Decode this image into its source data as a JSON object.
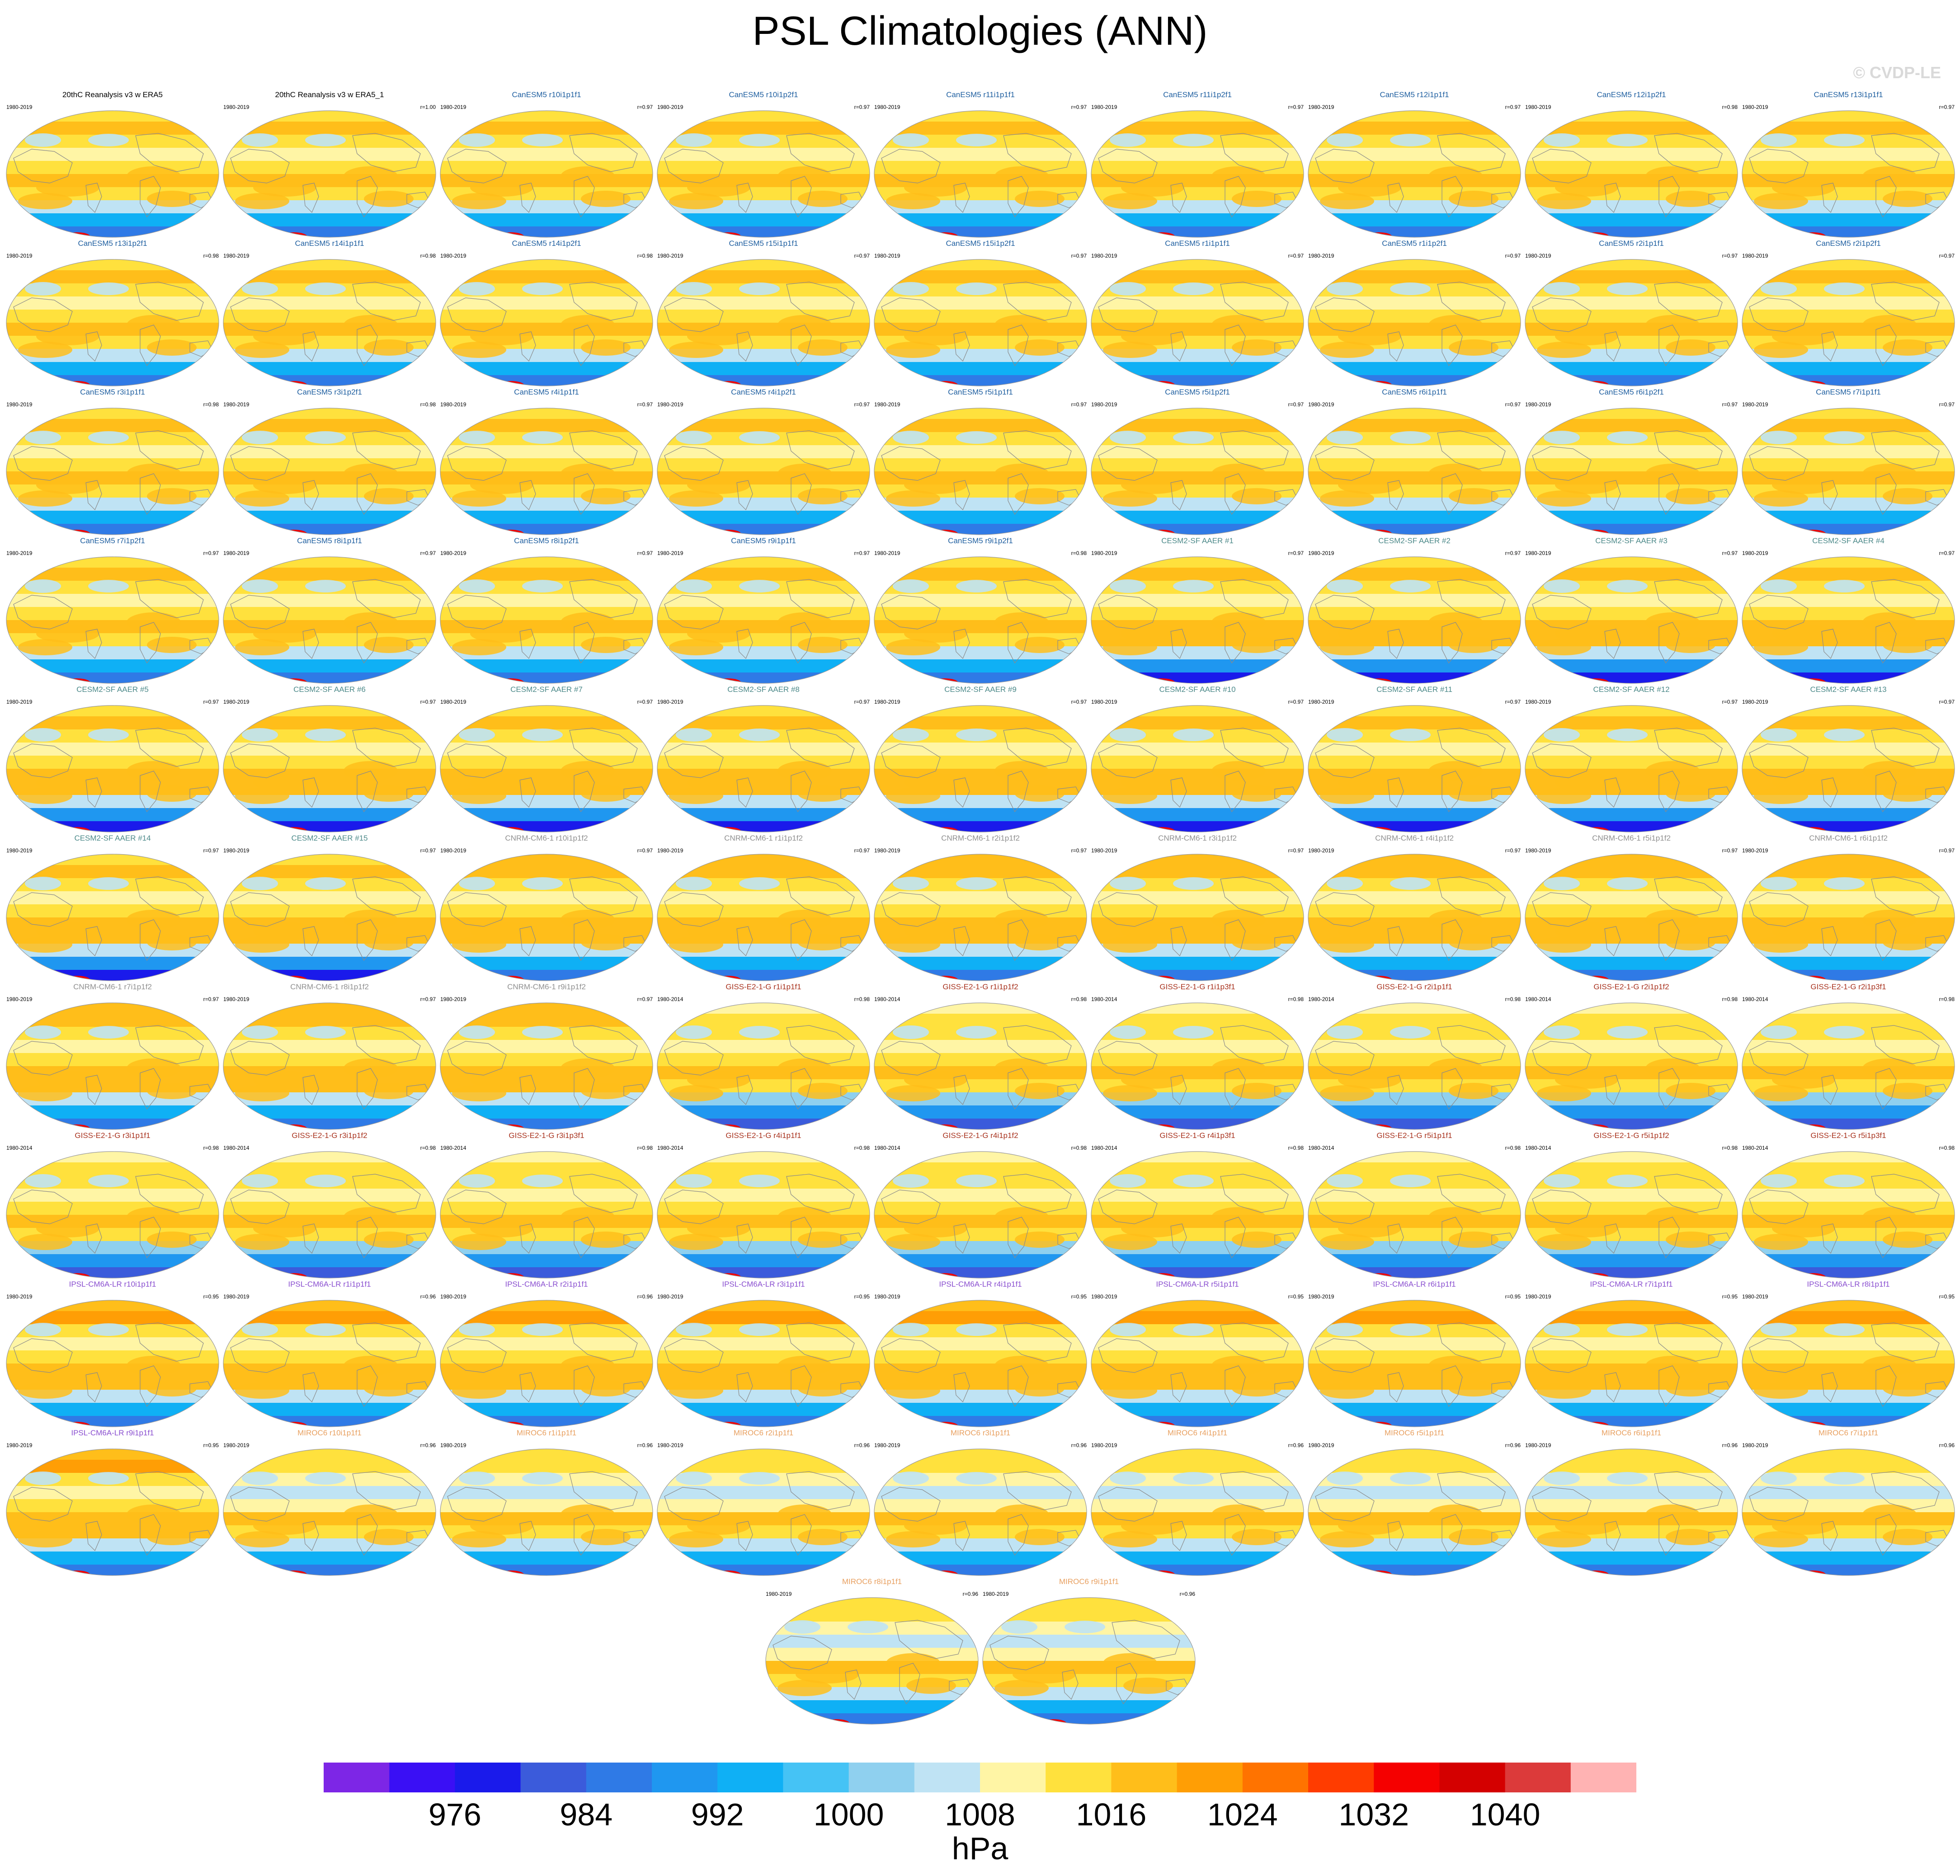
{
  "title": "PSL Climatologies (ANN)",
  "watermark": "© CVDP-LE",
  "map_data": {
    "type": "map-grid",
    "variable": "PSL",
    "projection": "robinson",
    "colorbar": {
      "colors": [
        "#7d26e6",
        "#3a0ff5",
        "#1a1aeb",
        "#3b5bdb",
        "#2f7ae6",
        "#1f97f0",
        "#0fb0f5",
        "#45c3f5",
        "#8fd0ef",
        "#bfe3f4",
        "#fff5a5",
        "#ffe13d",
        "#ffbe1a",
        "#ff9e05",
        "#ff7300",
        "#ff3c00",
        "#f50000",
        "#d40000",
        "#dc3a3a",
        "#ffb3b3"
      ],
      "tick_labels": [
        "976",
        "984",
        "992",
        "1000",
        "1008",
        "1016",
        "1024",
        "1032",
        "1040"
      ],
      "units": "hPa"
    },
    "panels": [
      {
        "title": "20thC Reanalysis v3 w ERA5",
        "years": "1980-2019",
        "corr": "",
        "color": "#000000",
        "style": "canesm"
      },
      {
        "title": "20thC Reanalysis v3 w ERA5_1",
        "years": "1980-2019",
        "corr": "r=1.00",
        "color": "#000000",
        "style": "canesm"
      },
      {
        "title": "CanESM5 r10i1p1f1",
        "years": "1980-2019",
        "corr": "r=0.97",
        "color": "#1f5fa0",
        "style": "canesm"
      },
      {
        "title": "CanESM5 r10i1p2f1",
        "years": "1980-2019",
        "corr": "r=0.97",
        "color": "#1f5fa0",
        "style": "canesm"
      },
      {
        "title": "CanESM5 r11i1p1f1",
        "years": "1980-2019",
        "corr": "r=0.97",
        "color": "#1f5fa0",
        "style": "canesm"
      },
      {
        "title": "CanESM5 r11i1p2f1",
        "years": "1980-2019",
        "corr": "r=0.97",
        "color": "#1f5fa0",
        "style": "canesm"
      },
      {
        "title": "CanESM5 r12i1p1f1",
        "years": "1980-2019",
        "corr": "r=0.97",
        "color": "#1f5fa0",
        "style": "canesm"
      },
      {
        "title": "CanESM5 r12i1p2f1",
        "years": "1980-2019",
        "corr": "r=0.98",
        "color": "#1f5fa0",
        "style": "canesm"
      },
      {
        "title": "CanESM5 r13i1p1f1",
        "years": "1980-2019",
        "corr": "r=0.97",
        "color": "#1f5fa0",
        "style": "canesm"
      },
      {
        "title": "CanESM5 r13i1p2f1",
        "years": "1980-2019",
        "corr": "r=0.98",
        "color": "#1f5fa0",
        "style": "canesm"
      },
      {
        "title": "CanESM5 r14i1p1f1",
        "years": "1980-2019",
        "corr": "r=0.98",
        "color": "#1f5fa0",
        "style": "canesm"
      },
      {
        "title": "CanESM5 r14i1p2f1",
        "years": "1980-2019",
        "corr": "r=0.98",
        "color": "#1f5fa0",
        "style": "canesm"
      },
      {
        "title": "CanESM5 r15i1p1f1",
        "years": "1980-2019",
        "corr": "r=0.97",
        "color": "#1f5fa0",
        "style": "canesm"
      },
      {
        "title": "CanESM5 r15i1p2f1",
        "years": "1980-2019",
        "corr": "r=0.97",
        "color": "#1f5fa0",
        "style": "canesm"
      },
      {
        "title": "CanESM5 r1i1p1f1",
        "years": "1980-2019",
        "corr": "r=0.97",
        "color": "#1f5fa0",
        "style": "canesm"
      },
      {
        "title": "CanESM5 r1i1p2f1",
        "years": "1980-2019",
        "corr": "r=0.97",
        "color": "#1f5fa0",
        "style": "canesm"
      },
      {
        "title": "CanESM5 r2i1p1f1",
        "years": "1980-2019",
        "corr": "r=0.97",
        "color": "#1f5fa0",
        "style": "canesm"
      },
      {
        "title": "CanESM5 r2i1p2f1",
        "years": "1980-2019",
        "corr": "r=0.97",
        "color": "#1f5fa0",
        "style": "canesm"
      },
      {
        "title": "CanESM5 r3i1p1f1",
        "years": "1980-2019",
        "corr": "r=0.98",
        "color": "#1f5fa0",
        "style": "canesm"
      },
      {
        "title": "CanESM5 r3i1p2f1",
        "years": "1980-2019",
        "corr": "r=0.98",
        "color": "#1f5fa0",
        "style": "canesm"
      },
      {
        "title": "CanESM5 r4i1p1f1",
        "years": "1980-2019",
        "corr": "r=0.97",
        "color": "#1f5fa0",
        "style": "canesm"
      },
      {
        "title": "CanESM5 r4i1p2f1",
        "years": "1980-2019",
        "corr": "r=0.97",
        "color": "#1f5fa0",
        "style": "canesm"
      },
      {
        "title": "CanESM5 r5i1p1f1",
        "years": "1980-2019",
        "corr": "r=0.97",
        "color": "#1f5fa0",
        "style": "canesm"
      },
      {
        "title": "CanESM5 r5i1p2f1",
        "years": "1980-2019",
        "corr": "r=0.97",
        "color": "#1f5fa0",
        "style": "canesm"
      },
      {
        "title": "CanESM5 r6i1p1f1",
        "years": "1980-2019",
        "corr": "r=0.97",
        "color": "#1f5fa0",
        "style": "canesm"
      },
      {
        "title": "CanESM5 r6i1p2f1",
        "years": "1980-2019",
        "corr": "r=0.97",
        "color": "#1f5fa0",
        "style": "canesm"
      },
      {
        "title": "CanESM5 r7i1p1f1",
        "years": "1980-2019",
        "corr": "r=0.97",
        "color": "#1f5fa0",
        "style": "canesm"
      },
      {
        "title": "CanESM5 r7i1p2f1",
        "years": "1980-2019",
        "corr": "r=0.97",
        "color": "#1f5fa0",
        "style": "canesm"
      },
      {
        "title": "CanESM5 r8i1p1f1",
        "years": "1980-2019",
        "corr": "r=0.97",
        "color": "#1f5fa0",
        "style": "canesm"
      },
      {
        "title": "CanESM5 r8i1p2f1",
        "years": "1980-2019",
        "corr": "r=0.97",
        "color": "#1f5fa0",
        "style": "canesm"
      },
      {
        "title": "CanESM5 r9i1p1f1",
        "years": "1980-2019",
        "corr": "r=0.97",
        "color": "#1f5fa0",
        "style": "canesm"
      },
      {
        "title": "CanESM5 r9i1p2f1",
        "years": "1980-2019",
        "corr": "r=0.98",
        "color": "#1f5fa0",
        "style": "canesm"
      },
      {
        "title": "CESM2-SF AAER #1",
        "years": "1980-2019",
        "corr": "r=0.97",
        "color": "#4d8a8a",
        "style": "cesm"
      },
      {
        "title": "CESM2-SF AAER #2",
        "years": "1980-2019",
        "corr": "r=0.97",
        "color": "#4d8a8a",
        "style": "cesm"
      },
      {
        "title": "CESM2-SF AAER #3",
        "years": "1980-2019",
        "corr": "r=0.97",
        "color": "#4d8a8a",
        "style": "cesm"
      },
      {
        "title": "CESM2-SF AAER #4",
        "years": "1980-2019",
        "corr": "r=0.97",
        "color": "#4d8a8a",
        "style": "cesm"
      },
      {
        "title": "CESM2-SF AAER #5",
        "years": "1980-2019",
        "corr": "r=0.97",
        "color": "#4d8a8a",
        "style": "cesm"
      },
      {
        "title": "CESM2-SF AAER #6",
        "years": "1980-2019",
        "corr": "r=0.97",
        "color": "#4d8a8a",
        "style": "cesm"
      },
      {
        "title": "CESM2-SF AAER #7",
        "years": "1980-2019",
        "corr": "r=0.97",
        "color": "#4d8a8a",
        "style": "cesm"
      },
      {
        "title": "CESM2-SF AAER #8",
        "years": "1980-2019",
        "corr": "r=0.97",
        "color": "#4d8a8a",
        "style": "cesm"
      },
      {
        "title": "CESM2-SF AAER #9",
        "years": "1980-2019",
        "corr": "r=0.97",
        "color": "#4d8a8a",
        "style": "cesm"
      },
      {
        "title": "CESM2-SF AAER #10",
        "years": "1980-2019",
        "corr": "r=0.97",
        "color": "#4d8a8a",
        "style": "cesm"
      },
      {
        "title": "CESM2-SF AAER #11",
        "years": "1980-2019",
        "corr": "r=0.97",
        "color": "#4d8a8a",
        "style": "cesm"
      },
      {
        "title": "CESM2-SF AAER #12",
        "years": "1980-2019",
        "corr": "r=0.97",
        "color": "#4d8a8a",
        "style": "cesm"
      },
      {
        "title": "CESM2-SF AAER #13",
        "years": "1980-2019",
        "corr": "r=0.97",
        "color": "#4d8a8a",
        "style": "cesm"
      },
      {
        "title": "CESM2-SF AAER #14",
        "years": "1980-2019",
        "corr": "r=0.97",
        "color": "#4d8a8a",
        "style": "cesm"
      },
      {
        "title": "CESM2-SF AAER #15",
        "years": "1980-2019",
        "corr": "r=0.97",
        "color": "#4d8a8a",
        "style": "cesm"
      },
      {
        "title": "CNRM-CM6-1 r10i1p1f2",
        "years": "1980-2019",
        "corr": "r=0.97",
        "color": "#909090",
        "style": "cnrm"
      },
      {
        "title": "CNRM-CM6-1 r1i1p1f2",
        "years": "1980-2019",
        "corr": "r=0.97",
        "color": "#909090",
        "style": "cnrm"
      },
      {
        "title": "CNRM-CM6-1 r2i1p1f2",
        "years": "1980-2019",
        "corr": "r=0.97",
        "color": "#909090",
        "style": "cnrm"
      },
      {
        "title": "CNRM-CM6-1 r3i1p1f2",
        "years": "1980-2019",
        "corr": "r=0.97",
        "color": "#909090",
        "style": "cnrm"
      },
      {
        "title": "CNRM-CM6-1 r4i1p1f2",
        "years": "1980-2019",
        "corr": "r=0.97",
        "color": "#909090",
        "style": "cnrm"
      },
      {
        "title": "CNRM-CM6-1 r5i1p1f2",
        "years": "1980-2019",
        "corr": "r=0.97",
        "color": "#909090",
        "style": "cnrm"
      },
      {
        "title": "CNRM-CM6-1 r6i1p1f2",
        "years": "1980-2019",
        "corr": "r=0.97",
        "color": "#909090",
        "style": "cnrm"
      },
      {
        "title": "CNRM-CM6-1 r7i1p1f2",
        "years": "1980-2019",
        "corr": "r=0.97",
        "color": "#909090",
        "style": "cnrm"
      },
      {
        "title": "CNRM-CM6-1 r8i1p1f2",
        "years": "1980-2019",
        "corr": "r=0.97",
        "color": "#909090",
        "style": "cnrm"
      },
      {
        "title": "CNRM-CM6-1 r9i1p1f2",
        "years": "1980-2019",
        "corr": "r=0.97",
        "color": "#909090",
        "style": "cnrm"
      },
      {
        "title": "GISS-E2-1-G r1i1p1f1",
        "years": "1980-2014",
        "corr": "r=0.98",
        "color": "#a8321e",
        "style": "giss"
      },
      {
        "title": "GISS-E2-1-G r1i1p1f2",
        "years": "1980-2014",
        "corr": "r=0.98",
        "color": "#a8321e",
        "style": "giss"
      },
      {
        "title": "GISS-E2-1-G r1i1p3f1",
        "years": "1980-2014",
        "corr": "r=0.98",
        "color": "#a8321e",
        "style": "giss"
      },
      {
        "title": "GISS-E2-1-G r2i1p1f1",
        "years": "1980-2014",
        "corr": "r=0.98",
        "color": "#a8321e",
        "style": "giss"
      },
      {
        "title": "GISS-E2-1-G r2i1p1f2",
        "years": "1980-2014",
        "corr": "r=0.98",
        "color": "#a8321e",
        "style": "giss"
      },
      {
        "title": "GISS-E2-1-G r2i1p3f1",
        "years": "1980-2014",
        "corr": "r=0.98",
        "color": "#a8321e",
        "style": "giss"
      },
      {
        "title": "GISS-E2-1-G r3i1p1f1",
        "years": "1980-2014",
        "corr": "r=0.98",
        "color": "#a8321e",
        "style": "giss"
      },
      {
        "title": "GISS-E2-1-G r3i1p1f2",
        "years": "1980-2014",
        "corr": "r=0.98",
        "color": "#a8321e",
        "style": "giss"
      },
      {
        "title": "GISS-E2-1-G r3i1p3f1",
        "years": "1980-2014",
        "corr": "r=0.98",
        "color": "#a8321e",
        "style": "giss"
      },
      {
        "title": "GISS-E2-1-G r4i1p1f1",
        "years": "1980-2014",
        "corr": "r=0.98",
        "color": "#a8321e",
        "style": "giss"
      },
      {
        "title": "GISS-E2-1-G r4i1p1f2",
        "years": "1980-2014",
        "corr": "r=0.98",
        "color": "#a8321e",
        "style": "giss"
      },
      {
        "title": "GISS-E2-1-G r4i1p3f1",
        "years": "1980-2014",
        "corr": "r=0.98",
        "color": "#a8321e",
        "style": "giss"
      },
      {
        "title": "GISS-E2-1-G r5i1p1f1",
        "years": "1980-2014",
        "corr": "r=0.98",
        "color": "#a8321e",
        "style": "giss"
      },
      {
        "title": "GISS-E2-1-G r5i1p1f2",
        "years": "1980-2014",
        "corr": "r=0.98",
        "color": "#a8321e",
        "style": "giss"
      },
      {
        "title": "GISS-E2-1-G r5i1p3f1",
        "years": "1980-2014",
        "corr": "r=0.98",
        "color": "#a8321e",
        "style": "giss"
      },
      {
        "title": "IPSL-CM6A-LR r10i1p1f1",
        "years": "1980-2019",
        "corr": "r=0.95",
        "color": "#8a4fd0",
        "style": "ipsl"
      },
      {
        "title": "IPSL-CM6A-LR r1i1p1f1",
        "years": "1980-2019",
        "corr": "r=0.96",
        "color": "#8a4fd0",
        "style": "ipsl"
      },
      {
        "title": "IPSL-CM6A-LR r2i1p1f1",
        "years": "1980-2019",
        "corr": "r=0.96",
        "color": "#8a4fd0",
        "style": "ipsl"
      },
      {
        "title": "IPSL-CM6A-LR r3i1p1f1",
        "years": "1980-2019",
        "corr": "r=0.95",
        "color": "#8a4fd0",
        "style": "ipsl"
      },
      {
        "title": "IPSL-CM6A-LR r4i1p1f1",
        "years": "1980-2019",
        "corr": "r=0.95",
        "color": "#8a4fd0",
        "style": "ipsl"
      },
      {
        "title": "IPSL-CM6A-LR r5i1p1f1",
        "years": "1980-2019",
        "corr": "r=0.95",
        "color": "#8a4fd0",
        "style": "ipsl"
      },
      {
        "title": "IPSL-CM6A-LR r6i1p1f1",
        "years": "1980-2019",
        "corr": "r=0.95",
        "color": "#8a4fd0",
        "style": "ipsl"
      },
      {
        "title": "IPSL-CM6A-LR r7i1p1f1",
        "years": "1980-2019",
        "corr": "r=0.95",
        "color": "#8a4fd0",
        "style": "ipsl"
      },
      {
        "title": "IPSL-CM6A-LR r8i1p1f1",
        "years": "1980-2019",
        "corr": "r=0.95",
        "color": "#8a4fd0",
        "style": "ipsl"
      },
      {
        "title": "IPSL-CM6A-LR r9i1p1f1",
        "years": "1980-2019",
        "corr": "r=0.95",
        "color": "#8a4fd0",
        "style": "ipsl"
      },
      {
        "title": "MIROC6 r10i1p1f1",
        "years": "1980-2019",
        "corr": "r=0.96",
        "color": "#e8a060",
        "style": "miroc"
      },
      {
        "title": "MIROC6 r1i1p1f1",
        "years": "1980-2019",
        "corr": "r=0.96",
        "color": "#e8a060",
        "style": "miroc"
      },
      {
        "title": "MIROC6 r2i1p1f1",
        "years": "1980-2019",
        "corr": "r=0.96",
        "color": "#e8a060",
        "style": "miroc"
      },
      {
        "title": "MIROC6 r3i1p1f1",
        "years": "1980-2019",
        "corr": "r=0.96",
        "color": "#e8a060",
        "style": "miroc"
      },
      {
        "title": "MIROC6 r4i1p1f1",
        "years": "1980-2019",
        "corr": "r=0.96",
        "color": "#e8a060",
        "style": "miroc"
      },
      {
        "title": "MIROC6 r5i1p1f1",
        "years": "1980-2019",
        "corr": "r=0.96",
        "color": "#e8a060",
        "style": "miroc"
      },
      {
        "title": "MIROC6 r6i1p1f1",
        "years": "1980-2019",
        "corr": "r=0.96",
        "color": "#e8a060",
        "style": "miroc"
      },
      {
        "title": "MIROC6 r7i1p1f1",
        "years": "1980-2019",
        "corr": "r=0.96",
        "color": "#e8a060",
        "style": "miroc"
      },
      {
        "title": "MIROC6 r8i1p1f1",
        "years": "1980-2019",
        "corr": "r=0.96",
        "color": "#e8a060",
        "style": "miroc"
      },
      {
        "title": "MIROC6 r9i1p1f1",
        "years": "1980-2019",
        "corr": "r=0.96",
        "color": "#e8a060",
        "style": "miroc"
      }
    ]
  }
}
